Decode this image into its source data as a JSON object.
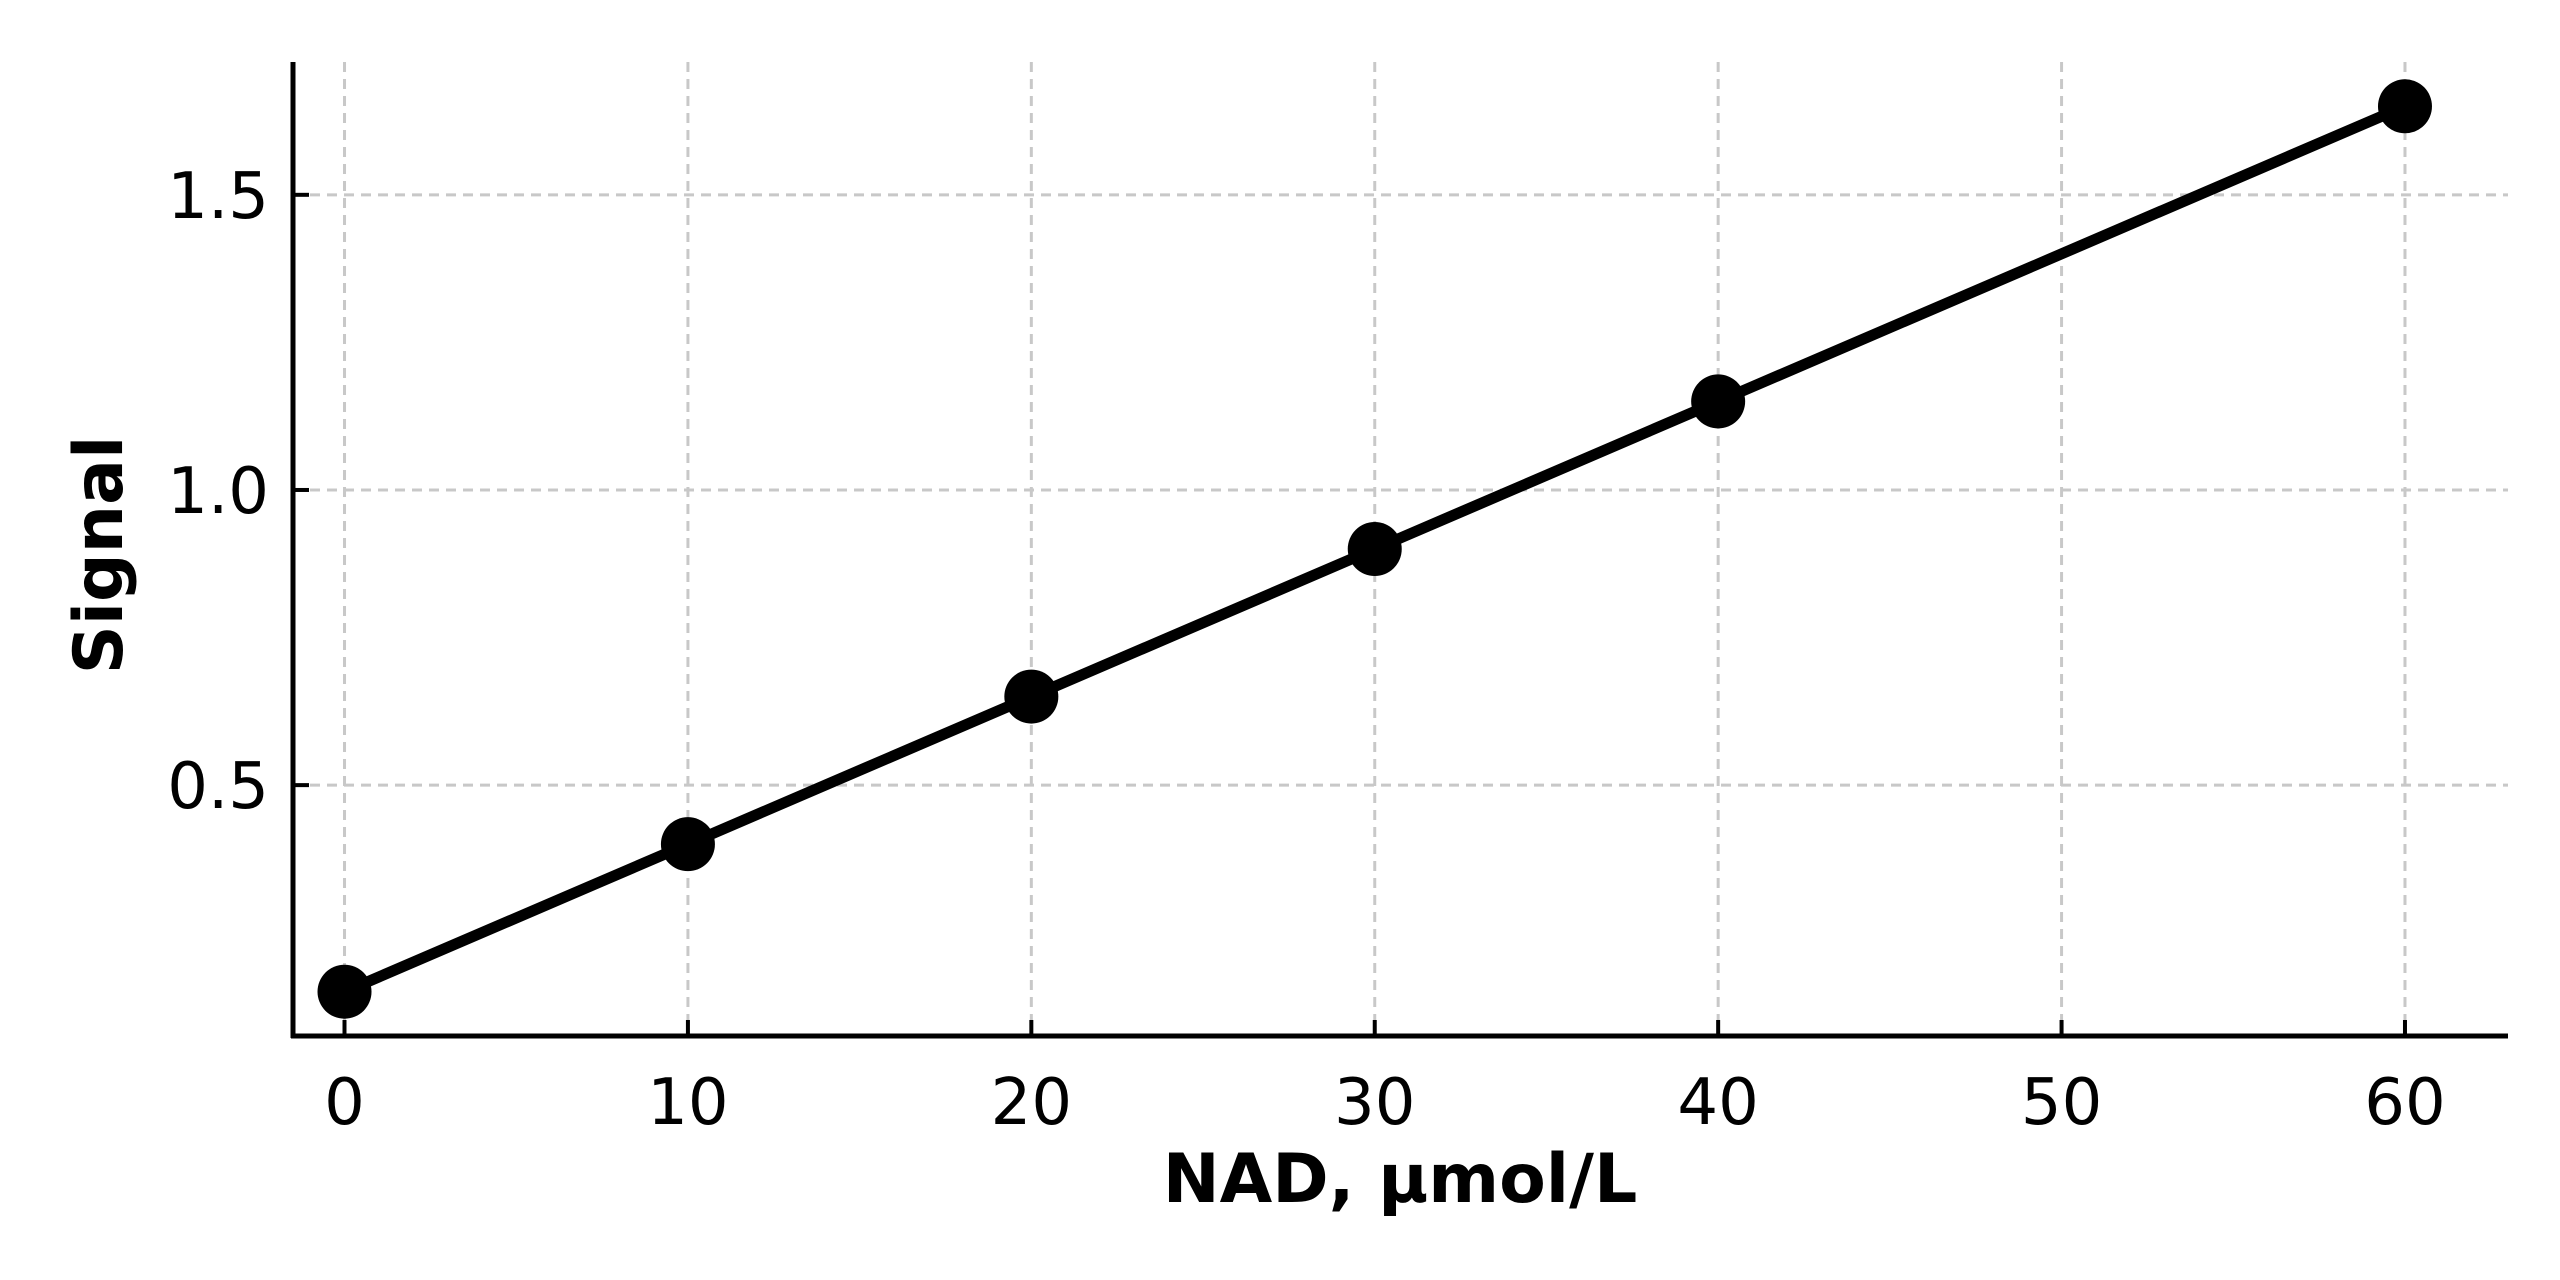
{
  "chart_data": {
    "type": "line",
    "title": "",
    "xlabel": "NAD, µmol/L",
    "ylabel": "Signal",
    "x": [
      0,
      10,
      20,
      30,
      40,
      60
    ],
    "series": [
      {
        "values": [
          0.15,
          0.4,
          0.65,
          0.9,
          1.15,
          1.65
        ],
        "color": "#000000",
        "marker": "circle"
      }
    ],
    "xlim": [
      -1.5,
      63
    ],
    "ylim": [
      0.075,
      1.725
    ],
    "xticks": [
      0,
      10,
      20,
      30,
      40,
      50,
      60
    ],
    "xtick_labels": [
      "0",
      "10",
      "20",
      "30",
      "40",
      "50",
      "60"
    ],
    "yticks": [
      0.5,
      1.0,
      1.5
    ],
    "ytick_labels": [
      "0.5",
      "1.0",
      "1.5"
    ],
    "grid": true,
    "legend": "none"
  }
}
